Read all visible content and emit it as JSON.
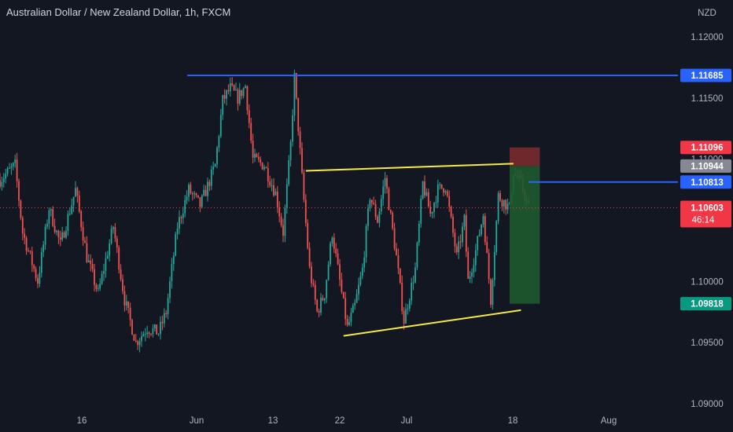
{
  "header": {
    "title": "Australian Dollar / New Zealand Dollar, 1h, FXCM"
  },
  "colors": {
    "background": "#131722",
    "up_candle": "#26a69a",
    "down_candle": "#ef5350",
    "resistance_line": "#2962ff",
    "trendline": "#f5ea4a",
    "stop_zone": "#7a2a2e",
    "target_zone": "#1f5a2e",
    "axis_text": "#b2b5be"
  },
  "chart_data": {
    "type": "candlestick",
    "instrument": "AUDNZD",
    "interval": "1h",
    "source": "FXCM",
    "y_axis": {
      "unit": "NZD",
      "range": [
        1.0897,
        1.1225
      ],
      "ticks": [
        "1.12000",
        "1.11500",
        "1.11000",
        "1.10000",
        "1.09500",
        "1.09000"
      ]
    },
    "x_axis": {
      "ticks": [
        "16",
        "Jun",
        "13",
        "22",
        "Jul",
        "18",
        "Aug"
      ]
    },
    "price_path": [
      [
        0.0,
        1.1083
      ],
      [
        2.0,
        1.1095
      ],
      [
        3.0,
        1.104
      ],
      [
        5.0,
        1.1
      ],
      [
        6.5,
        1.106
      ],
      [
        8.0,
        1.103
      ],
      [
        10.0,
        1.1075
      ],
      [
        11.5,
        1.102
      ],
      [
        13.0,
        1.099
      ],
      [
        15.0,
        1.1045
      ],
      [
        16.5,
        1.0985
      ],
      [
        18.0,
        1.095
      ],
      [
        19.5,
        1.0962
      ],
      [
        21.0,
        1.0958
      ],
      [
        22.0,
        1.0975
      ],
      [
        23.5,
        1.1045
      ],
      [
        25.0,
        1.1075
      ],
      [
        26.5,
        1.1062
      ],
      [
        27.5,
        1.1078
      ],
      [
        28.5,
        1.1095
      ],
      [
        29.5,
        1.1148
      ],
      [
        30.5,
        1.1158
      ],
      [
        31.5,
        1.115
      ],
      [
        32.5,
        1.116
      ],
      [
        33.5,
        1.11
      ],
      [
        35.0,
        1.1095
      ],
      [
        36.5,
        1.1072
      ],
      [
        37.5,
        1.104
      ],
      [
        38.5,
        1.1112
      ],
      [
        39.0,
        1.1167
      ],
      [
        40.0,
        1.1085
      ],
      [
        41.0,
        1.101
      ],
      [
        42.0,
        1.0975
      ],
      [
        43.0,
        1.099
      ],
      [
        44.0,
        1.104
      ],
      [
        45.0,
        1.1
      ],
      [
        46.0,
        1.0962
      ],
      [
        47.0,
        1.098
      ],
      [
        48.0,
        1.101
      ],
      [
        49.0,
        1.107
      ],
      [
        50.0,
        1.105
      ],
      [
        51.0,
        1.1085
      ],
      [
        52.5,
        1.102
      ],
      [
        53.5,
        1.0968
      ],
      [
        55.0,
        1.101
      ],
      [
        56.0,
        1.108
      ],
      [
        57.0,
        1.1055
      ],
      [
        58.0,
        1.1075
      ],
      [
        59.0,
        1.1078
      ],
      [
        60.5,
        1.102
      ],
      [
        61.5,
        1.105
      ],
      [
        62.0,
        1.1
      ],
      [
        63.0,
        1.1025
      ],
      [
        64.0,
        1.1055
      ],
      [
        65.0,
        1.0985
      ],
      [
        66.0,
        1.107
      ],
      [
        67.5,
        1.106
      ],
      [
        68.0,
        1.109
      ],
      [
        69.0,
        1.108
      ],
      [
        70.0,
        1.106
      ]
    ],
    "horizontal_levels": [
      {
        "label": "1.11685",
        "value": 1.11685,
        "role": "resistance"
      },
      {
        "label": "1.10813",
        "value": 1.10813,
        "role": "entry"
      }
    ],
    "trendlines": [
      {
        "from": [
          40.5,
          1.10905
        ],
        "to": [
          68.0,
          1.10963
        ],
        "role": "upper"
      },
      {
        "from": [
          45.5,
          1.09555
        ],
        "to": [
          69.0,
          1.09765
        ],
        "role": "lower"
      }
    ],
    "position": {
      "side": "long",
      "x_range": [
        67.5,
        71.5
      ],
      "entry": 1.10944,
      "stop_top": 1.11096,
      "target": 1.09818
    },
    "price_tags": [
      {
        "label": "1.11685",
        "value": 1.11685,
        "color": "#2962ff"
      },
      {
        "label": "1.11096",
        "value": 1.11096,
        "color": "#f23645"
      },
      {
        "label": "1.10944",
        "value": 1.10944,
        "color": "#868993"
      },
      {
        "label": "1.10813",
        "value": 1.10813,
        "color": "#2962ff"
      },
      {
        "label": "1.09818",
        "value": 1.09818,
        "color": "#089981"
      }
    ],
    "current_price": {
      "value": 1.10603,
      "label": "1.10603",
      "countdown": "46:14",
      "color": "#f23645"
    }
  }
}
